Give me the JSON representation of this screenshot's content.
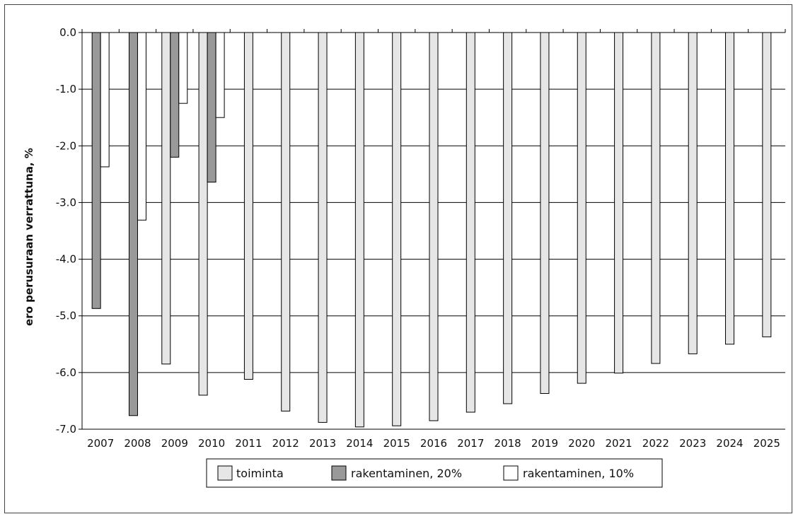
{
  "chart_data": {
    "type": "bar",
    "ylabel": "ero perusuraan verrattuna, %",
    "xlabel": "",
    "title": "",
    "ylim": [
      -7.0,
      0.0
    ],
    "yticks": [
      "0.0",
      "-1.0",
      "-2.0",
      "-3.0",
      "-4.0",
      "-5.0",
      "-6.0",
      "-7.0"
    ],
    "grid": true,
    "legend_position": "bottom",
    "categories": [
      "2007",
      "2008",
      "2009",
      "2010",
      "2011",
      "2012",
      "2013",
      "2014",
      "2015",
      "2016",
      "2017",
      "2018",
      "2019",
      "2020",
      "2021",
      "2022",
      "2023",
      "2024",
      "2025"
    ],
    "series": [
      {
        "name": "toiminta",
        "color": "#e6e6e6",
        "values": [
          null,
          null,
          -5.85,
          -6.4,
          -6.12,
          -6.68,
          -6.88,
          -6.96,
          -6.94,
          -6.85,
          -6.7,
          -6.55,
          -6.37,
          -6.19,
          -6.01,
          -5.84,
          -5.67,
          -5.5,
          -5.37
        ]
      },
      {
        "name": "rakentaminen, 20%",
        "color": "#999999",
        "values": [
          -4.87,
          -6.76,
          -2.2,
          -2.64,
          null,
          null,
          null,
          null,
          null,
          null,
          null,
          null,
          null,
          null,
          null,
          null,
          null,
          null,
          null
        ]
      },
      {
        "name": "rakentaminen, 10%",
        "color": "#ffffff",
        "values": [
          -2.37,
          -3.31,
          -1.25,
          -1.5,
          null,
          null,
          null,
          null,
          null,
          null,
          null,
          null,
          null,
          null,
          null,
          null,
          null,
          null,
          null
        ]
      }
    ]
  }
}
